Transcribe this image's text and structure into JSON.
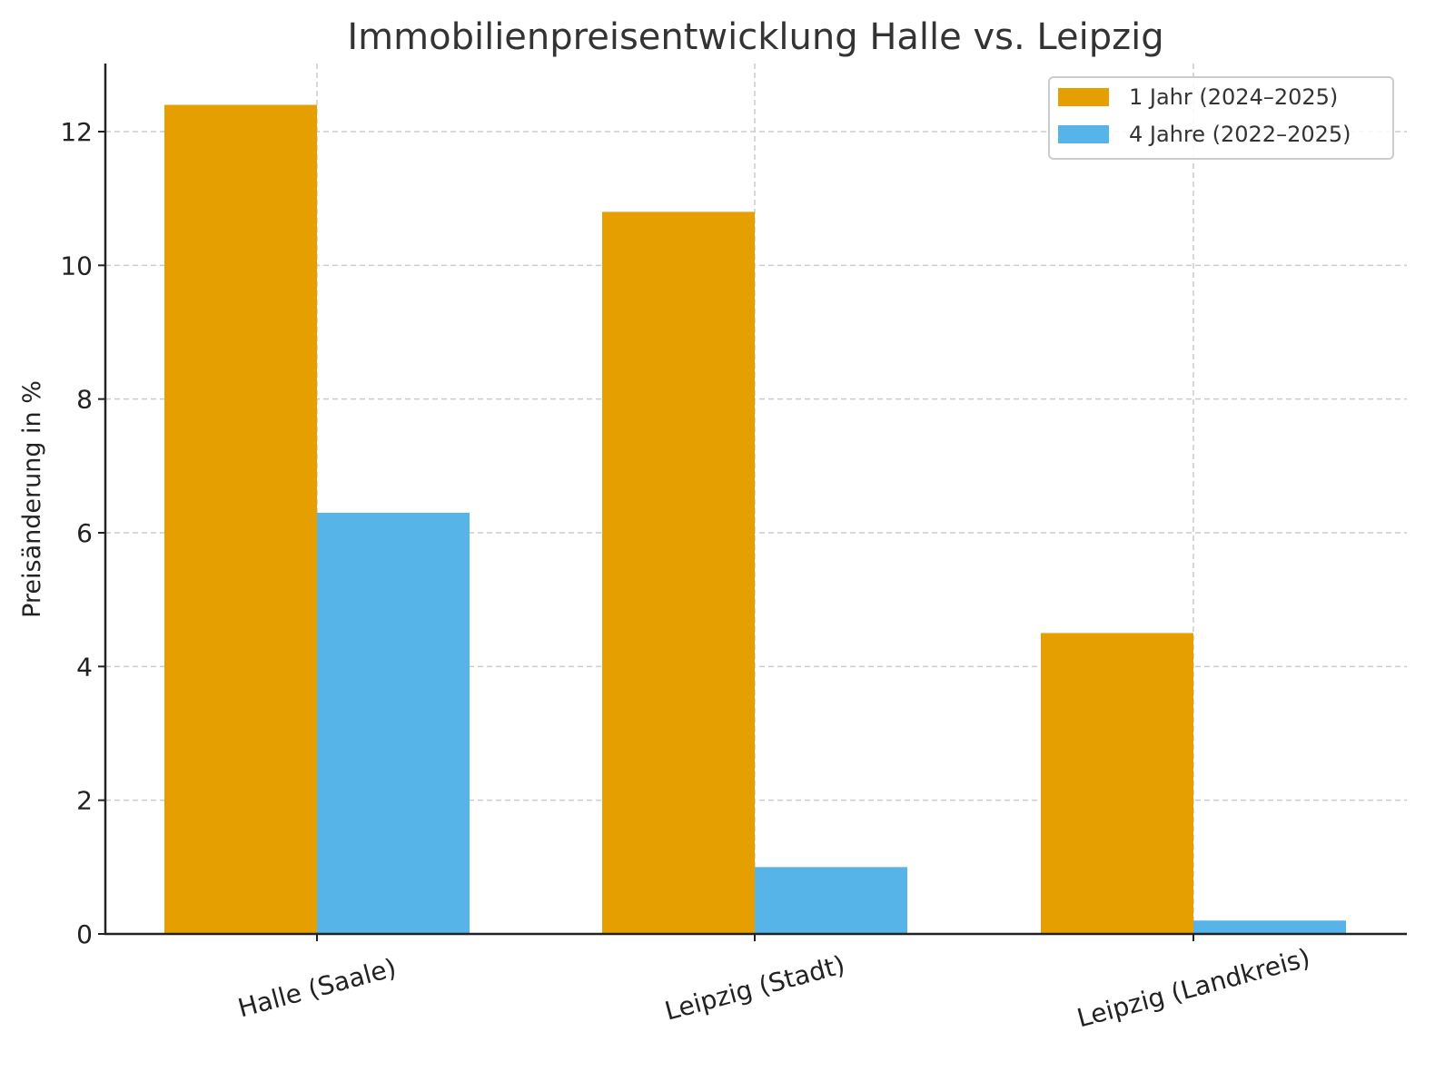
{
  "chart_data": {
    "type": "bar",
    "title": "Immobilienpreisentwicklung Halle vs. Leipzig",
    "xlabel": "",
    "ylabel": "Preisänderung in %",
    "categories": [
      "Halle (Saale)",
      "Leipzig (Stadt)",
      "Leipzig (Landkreis)"
    ],
    "series": [
      {
        "name": "1 Jahr (2024–2025)",
        "color": "#E69F00",
        "values": [
          12.4,
          10.8,
          4.5
        ]
      },
      {
        "name": "4 Jahre (2022–2025)",
        "color": "#56B4E9",
        "values": [
          6.3,
          1.0,
          0.2
        ]
      }
    ],
    "ylim": [
      0,
      13
    ],
    "yticks": [
      0,
      2,
      4,
      6,
      8,
      10,
      12
    ],
    "grid": true,
    "legend_position": "upper right"
  }
}
